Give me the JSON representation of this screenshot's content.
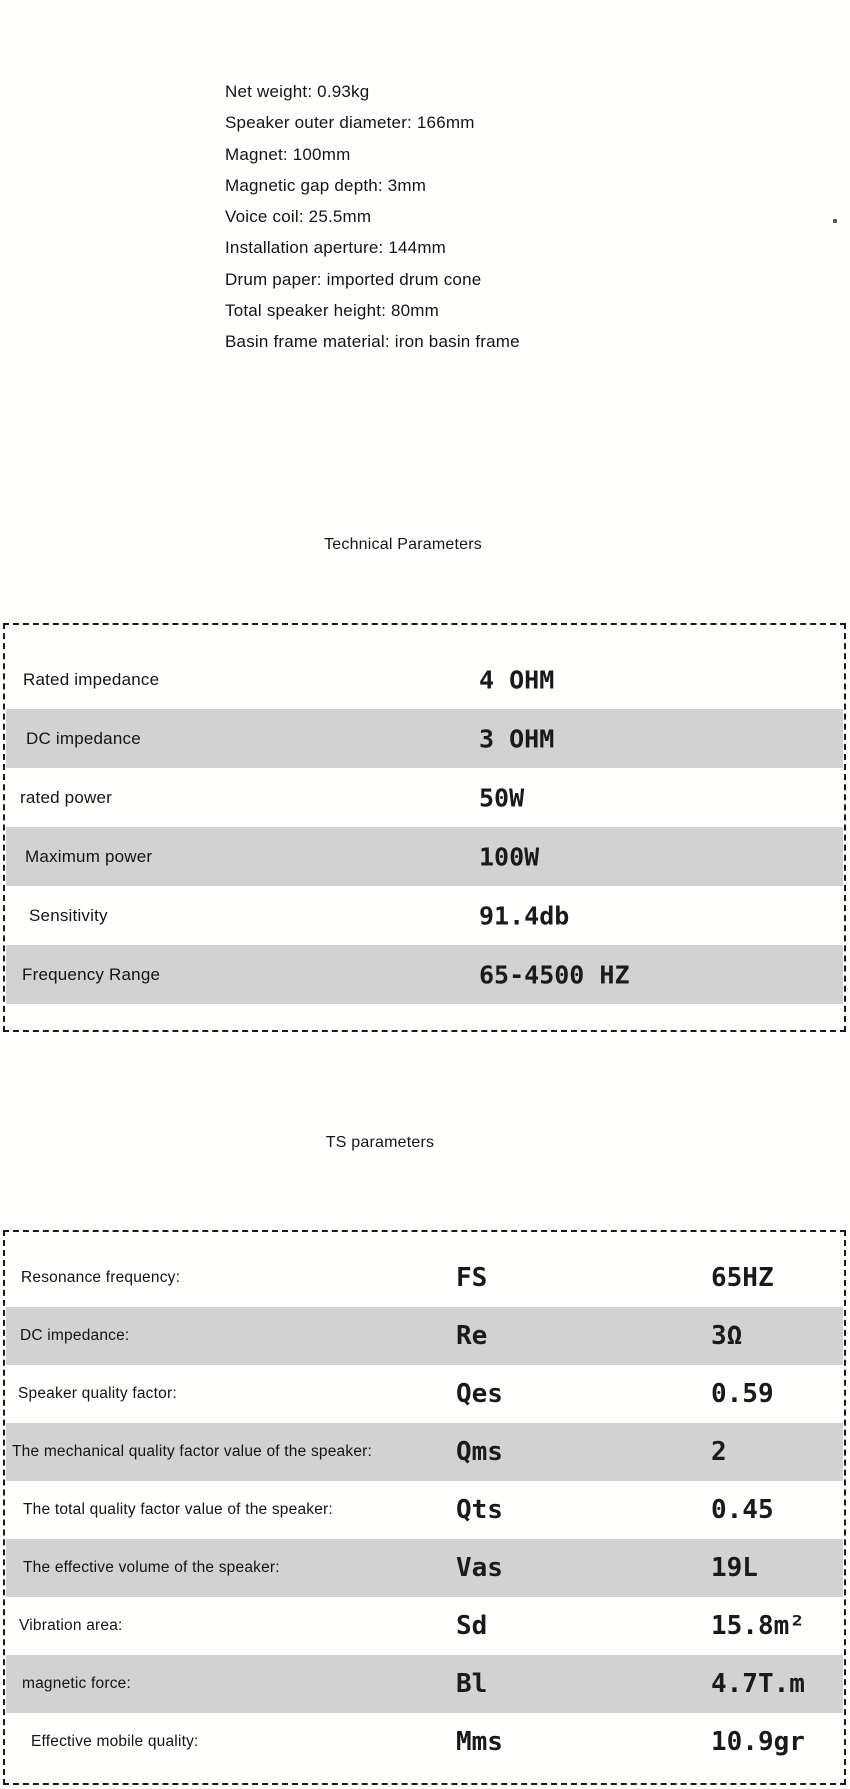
{
  "colors": {
    "row_shade": "#d2d2d2",
    "border": "#1b1b1b",
    "text": "#1c1c1c",
    "background": "#ffffff"
  },
  "spec_list": {
    "items": [
      "Net weight: 0.93kg",
      "Speaker outer diameter: 166mm",
      "Magnet: 100mm",
      "Magnetic gap depth: 3mm",
      "Voice coil: 25.5mm",
      "Installation aperture: 144mm",
      "Drum paper: imported drum cone",
      "Total speaker height: 80mm",
      "Basin frame material: iron basin frame"
    ]
  },
  "sections": {
    "technical": {
      "title": "Technical Parameters"
    },
    "ts": {
      "title": "TS parameters"
    }
  },
  "technical_table": {
    "rows": [
      {
        "label": "Rated impedance",
        "value": "4 OHM"
      },
      {
        "label": "DC impedance",
        "value": "3 OHM"
      },
      {
        "label": "rated power",
        "value": "50W"
      },
      {
        "label": "Maximum power",
        "value": "100W"
      },
      {
        "label": "Sensitivity",
        "value": "91.4db"
      },
      {
        "label": "Frequency Range",
        "value": "65-4500 HZ"
      }
    ]
  },
  "ts_table": {
    "rows": [
      {
        "label": "Resonance frequency:",
        "symbol": "FS",
        "value": "65HZ"
      },
      {
        "label": "DC impedance:",
        "symbol": "Re",
        "value": "3Ω"
      },
      {
        "label": "Speaker quality factor:",
        "symbol": "Qes",
        "value": "0.59"
      },
      {
        "label": "The mechanical quality factor value of the speaker:",
        "symbol": "Qms",
        "value": "2"
      },
      {
        "label": "The total quality factor value of the speaker:",
        "symbol": "Qts",
        "value": "0.45"
      },
      {
        "label": "The effective volume of the speaker:",
        "symbol": "Vas",
        "value": "19L"
      },
      {
        "label": "Vibration area:",
        "symbol": "Sd",
        "value": "15.8m²"
      },
      {
        "label": "magnetic force:",
        "symbol": "Bl",
        "value": "4.7T.m"
      },
      {
        "label": "Effective mobile quality:",
        "symbol": "Mms",
        "value": "10.9gr"
      }
    ]
  }
}
